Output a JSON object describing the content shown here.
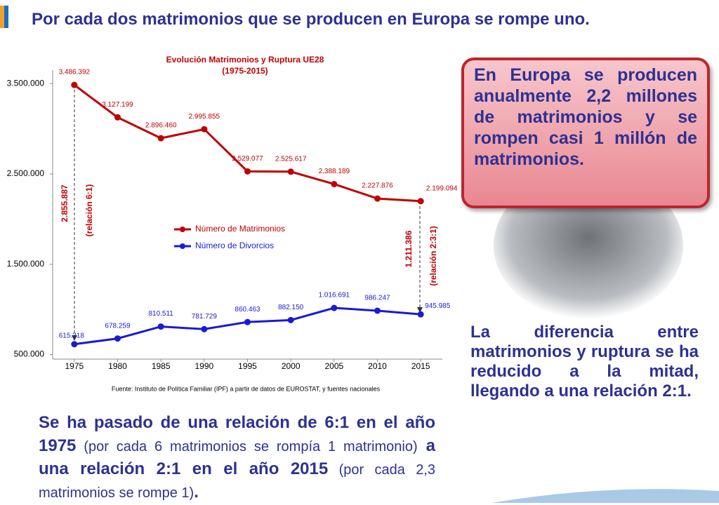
{
  "chart_data": {
    "type": "line",
    "title": "Evolución Matrimonios y Ruptura UE28",
    "subtitle": "(1975-2015)",
    "x": [
      1975,
      1980,
      1985,
      1990,
      1995,
      2000,
      2005,
      2010,
      2015
    ],
    "xlim": [
      1972.5,
      2017.5
    ],
    "xticks": [
      1975,
      1980,
      1985,
      1990,
      1995,
      2000,
      2005,
      2010,
      2015
    ],
    "ylim": [
      450000,
      3650000
    ],
    "yticks": [
      {
        "value": 500000,
        "label": "500.000"
      },
      {
        "value": 1500000,
        "label": "1.500.000"
      },
      {
        "value": 2500000,
        "label": "2.500.000"
      },
      {
        "value": 3500000,
        "label": "3.500.000"
      }
    ],
    "legend": "center",
    "series": [
      {
        "name": "Número de Matrimonios",
        "color": "#c00000",
        "values": [
          3486392,
          3127199,
          2896460,
          2995855,
          2529077,
          2525617,
          2388189,
          2227876,
          2199094
        ],
        "value_labels": [
          "3.486.392",
          "3.127.199",
          "2.896.460",
          "2.995.855",
          "2.529.077",
          "2.525.617",
          "2.388.189",
          "2.227.876",
          "2.199.094"
        ]
      },
      {
        "name": "Número de Divorcios",
        "color": "#1a1ad6",
        "values": [
          615318,
          678259,
          810511,
          781729,
          860463,
          882150,
          1016691,
          986247,
          945985
        ],
        "value_labels": [
          "615.318",
          "678.259",
          "810.511",
          "781.729",
          "860.463",
          "882.150",
          "1.016.691",
          "986.247",
          "945.985"
        ]
      }
    ],
    "annotations": [
      "2.855.887",
      "(relación 6:1)",
      "1.211.386",
      "(relación 2:3:1)"
    ],
    "source": "Fuente: Instituto de Política Familiar (IPF) a partir de datos de EUROSTAT, y fuentes nacionales"
  },
  "slide": {
    "title": "Por cada dos matrimonios que se producen en Europa se rompe uno.",
    "callout": "En Europa se producen anualmente 2,2 millones de matrimonios y se rompen casi 1 millón de matrimonios.",
    "right_text": "La diferencia entre matrimonios y ruptura se ha reducido a la mitad, llegando a una relación 2:1.",
    "bottom_text": [
      "Se ha pasado de una relación de 6:1 en el año 1975",
      " (por cada 6 matrimonios se rompía 1 matrimonio)",
      " a una relación 2:1 en el año 2015",
      " (por cada 2,3 matrimonios se rompe 1)",
      "."
    ]
  }
}
